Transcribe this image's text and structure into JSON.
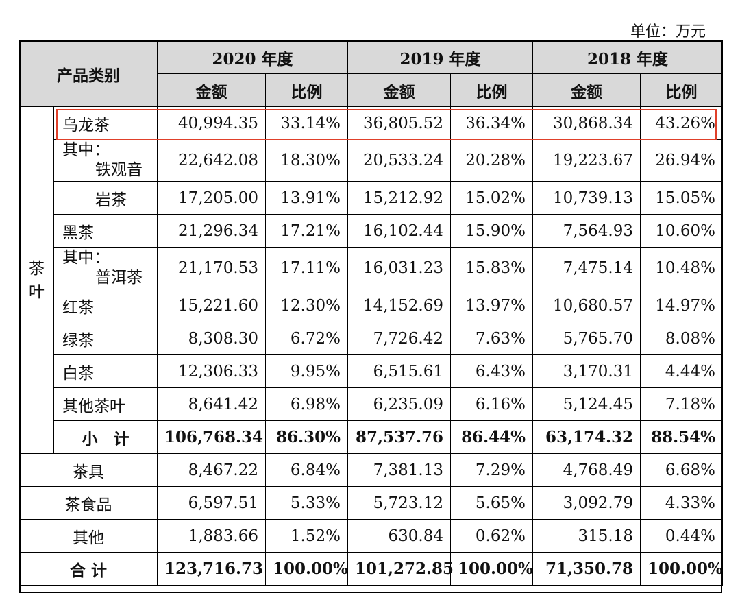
{
  "unit_label": "单位：万元",
  "header": {
    "category": "产品类别",
    "years": [
      "2020 年度",
      "2019 年度",
      "2018 年度"
    ],
    "amount": "金额",
    "ratio": "比例"
  },
  "group_label": "茶叶",
  "rows": [
    {
      "label": "乌龙茶",
      "v": [
        "40,994.35",
        "33.14%",
        "36,805.52",
        "36.34%",
        "30,868.34",
        "43.26%"
      ]
    },
    {
      "label_1": "其中：",
      "label_2": "铁观音",
      "v": [
        "22,642.08",
        "18.30%",
        "20,533.24",
        "20.28%",
        "19,223.67",
        "26.94%"
      ]
    },
    {
      "label": "岩茶",
      "v": [
        "17,205.00",
        "13.91%",
        "15,212.92",
        "15.02%",
        "10,739.13",
        "15.05%"
      ]
    },
    {
      "label": "黑茶",
      "v": [
        "21,296.34",
        "17.21%",
        "16,102.44",
        "15.90%",
        "7,564.93",
        "10.60%"
      ]
    },
    {
      "label_1": "其中：",
      "label_2": "普洱茶",
      "v": [
        "21,170.53",
        "17.11%",
        "16,031.23",
        "15.83%",
        "7,475.14",
        "10.48%"
      ]
    },
    {
      "label": "红茶",
      "v": [
        "15,221.60",
        "12.30%",
        "14,152.69",
        "13.97%",
        "10,680.57",
        "14.97%"
      ]
    },
    {
      "label": "绿茶",
      "v": [
        "8,308.30",
        "6.72%",
        "7,726.42",
        "7.63%",
        "5,765.70",
        "8.08%"
      ]
    },
    {
      "label": "白茶",
      "v": [
        "12,306.33",
        "9.95%",
        "6,515.61",
        "6.43%",
        "3,170.31",
        "4.44%"
      ]
    },
    {
      "label": "其他茶叶",
      "v": [
        "8,641.42",
        "6.98%",
        "6,235.09",
        "6.16%",
        "5,124.45",
        "7.18%"
      ]
    },
    {
      "label": "小　计",
      "v": [
        "106,768.34",
        "86.30%",
        "87,537.76",
        "86.44%",
        "63,174.32",
        "88.54%"
      ]
    },
    {
      "label": "茶具",
      "v": [
        "8,467.22",
        "6.84%",
        "7,381.13",
        "7.29%",
        "4,768.49",
        "6.68%"
      ]
    },
    {
      "label": "茶食品",
      "v": [
        "6,597.51",
        "5.33%",
        "5,723.12",
        "5.65%",
        "3,092.79",
        "4.33%"
      ]
    },
    {
      "label": "其他",
      "v": [
        "1,883.66",
        "1.52%",
        "630.84",
        "0.62%",
        "315.18",
        "0.44%"
      ]
    },
    {
      "label": "合 计",
      "v": [
        "123,716.73",
        "100.00%",
        "101,272.85",
        "100.00%",
        "71,350.78",
        "100.00%"
      ]
    }
  ],
  "highlight_color": "#e0402a"
}
